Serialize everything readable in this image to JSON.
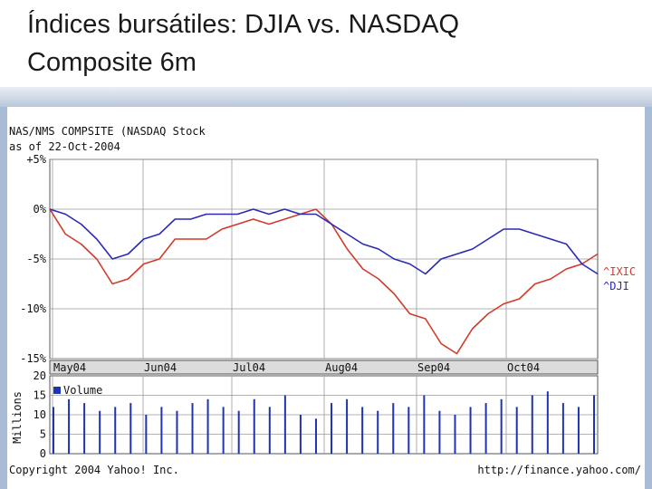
{
  "slide": {
    "title": "Índices bursátiles: DJIA vs. NASDAQ\nComposite 6m"
  },
  "chart_header": {
    "line1": "NAS/NMS COMPSITE (NASDAQ Stock",
    "line2": "as of 22-Oct-2004"
  },
  "footer": {
    "copyright": "Copyright 2004 Yahoo! Inc.",
    "url": "http://finance.yahoo.com/"
  },
  "colors": {
    "ixic": "#d23a2a",
    "dji": "#2a2ab8",
    "volume": "#1f35b0",
    "plot_bg": "#ffffff",
    "grid": "#9a9a9a",
    "band": "#dcdcdc"
  },
  "chart_data": [
    {
      "type": "line",
      "title": "",
      "ylabel": "",
      "ylim": [
        -15,
        5
      ],
      "grid": true,
      "y_ticks": [
        "+5%",
        "0%",
        "-5%",
        "-10%",
        "-15%"
      ],
      "x_ticks": [
        "May04",
        "Jun04",
        "Jul04",
        "Aug04",
        "Sep04",
        "Oct04"
      ],
      "legend": {
        "position": "right",
        "entries": [
          "^IXIC",
          "^DJI"
        ]
      },
      "x": [
        0,
        5,
        10,
        15,
        20,
        25,
        30,
        35,
        40,
        45,
        50,
        55,
        60,
        65,
        70,
        75,
        80,
        85,
        90,
        95,
        100,
        105,
        110,
        115,
        120,
        125,
        130,
        135,
        140,
        145,
        150,
        155,
        160,
        165,
        170,
        175
      ],
      "series": [
        {
          "name": "^IXIC",
          "values": [
            0,
            -2.5,
            -3.5,
            -5.0,
            -7.5,
            -7.0,
            -5.5,
            -5.0,
            -3.0,
            -3.0,
            -3.0,
            -2.0,
            -1.5,
            -1.0,
            -1.5,
            -1.0,
            -0.5,
            0,
            -1.5,
            -4.0,
            -6.0,
            -7.0,
            -8.5,
            -10.5,
            -11.0,
            -13.5,
            -14.5,
            -12.0,
            -10.5,
            -9.5,
            -9.0,
            -7.5,
            -7.0,
            -6.0,
            -5.5,
            -4.5
          ]
        },
        {
          "name": "^DJI",
          "values": [
            0,
            -0.5,
            -1.5,
            -3.0,
            -5.0,
            -4.5,
            -3.0,
            -2.5,
            -1.0,
            -1.0,
            -0.5,
            -0.5,
            -0.5,
            0,
            -0.5,
            0,
            -0.5,
            -0.5,
            -1.5,
            -2.5,
            -3.5,
            -4.0,
            -5.0,
            -5.5,
            -6.5,
            -5.0,
            -4.5,
            -4.0,
            -3.0,
            -2.0,
            -2.0,
            -2.5,
            -3.0,
            -3.5,
            -5.5,
            -6.5
          ]
        }
      ]
    },
    {
      "type": "bar",
      "title": "",
      "ylabel": "Millions",
      "ylim": [
        0,
        20
      ],
      "y_ticks": [
        "20",
        "15",
        "10",
        "5",
        "0"
      ],
      "legend": {
        "position": "top-left",
        "entries": [
          "Volume"
        ]
      },
      "x": [
        0,
        5,
        10,
        15,
        20,
        25,
        30,
        35,
        40,
        45,
        50,
        55,
        60,
        65,
        70,
        75,
        80,
        85,
        90,
        95,
        100,
        105,
        110,
        115,
        120,
        125,
        130,
        135,
        140,
        145,
        150,
        155,
        160,
        165,
        170,
        175
      ],
      "values": [
        12,
        14,
        13,
        11,
        12,
        13,
        10,
        12,
        11,
        13,
        14,
        12,
        11,
        14,
        12,
        15,
        10,
        9,
        13,
        14,
        12,
        11,
        13,
        12,
        15,
        11,
        10,
        12,
        13,
        14,
        12,
        15,
        16,
        13,
        12,
        15
      ]
    }
  ]
}
